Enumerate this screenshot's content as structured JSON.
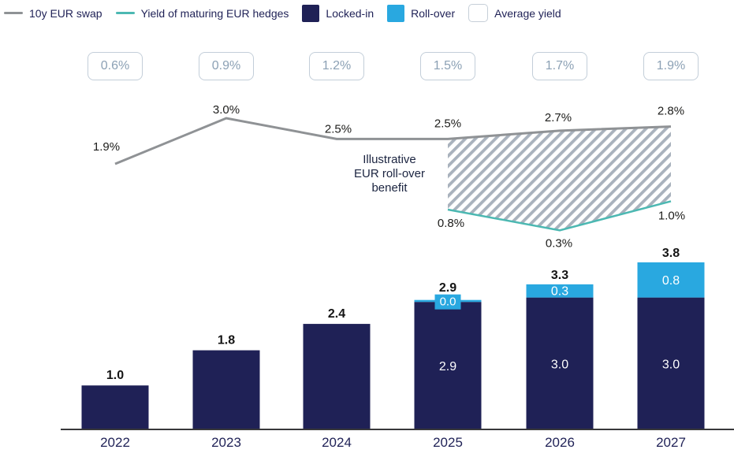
{
  "colors": {
    "navy": "#1f2156",
    "blue": "#29a8e0",
    "teal": "#4cb8b2",
    "swap_line": "#8f9295",
    "hatch": "#a9b2bd",
    "label": "#1d1d1b",
    "axis": "#38383a",
    "avg_box_border": "#c3ced9",
    "avg_box_text": "#8ca1b5",
    "white": "#ffffff"
  },
  "legend": {
    "items": [
      {
        "swatch": "line",
        "color": "swap_line",
        "label": "10y EUR swap"
      },
      {
        "swatch": "line",
        "color": "teal",
        "label": "Yield of maturing EUR hedges"
      },
      {
        "swatch": "square",
        "color": "navy",
        "label": "Locked-in"
      },
      {
        "swatch": "square",
        "color": "blue",
        "label": "Roll-over"
      },
      {
        "swatch": "square_outline",
        "color": "white",
        "label": "Average yield"
      }
    ]
  },
  "chart_data": {
    "type": "combo",
    "categories": [
      "2022",
      "2023",
      "2024",
      "2025",
      "2026",
      "2027"
    ],
    "series": [
      {
        "name": "Locked-in",
        "type": "bar",
        "stack": "volume",
        "color": "navy",
        "values": [
          1.0,
          1.8,
          2.4,
          2.9,
          3.0,
          3.0
        ],
        "inside_labels": [
          null,
          null,
          null,
          "2.9",
          "3.0",
          "3.0"
        ]
      },
      {
        "name": "Roll-over",
        "type": "bar",
        "stack": "volume",
        "color": "blue",
        "values": [
          null,
          null,
          null,
          0.0,
          0.3,
          0.8
        ],
        "inside_labels": [
          null,
          null,
          null,
          "0.0",
          "0.3",
          "0.8"
        ]
      },
      {
        "name": "10y EUR swap",
        "type": "line",
        "unit": "%",
        "color": "swap_line",
        "values": [
          1.9,
          3.0,
          2.5,
          2.5,
          2.7,
          2.8
        ],
        "labels": [
          "1.9%",
          "3.0%",
          "2.5%",
          "2.5%",
          "2.7%",
          "2.8%"
        ]
      },
      {
        "name": "Yield of maturing EUR hedges",
        "type": "line",
        "unit": "%",
        "color": "teal",
        "values": [
          null,
          null,
          null,
          0.8,
          0.3,
          1.0
        ],
        "labels": [
          null,
          null,
          null,
          "0.8%",
          "0.3%",
          "1.0%"
        ]
      },
      {
        "name": "Average yield",
        "type": "boxed_labels",
        "values": [
          "0.6%",
          "0.9%",
          "1.2%",
          "1.5%",
          "1.7%",
          "1.9%"
        ]
      }
    ],
    "bar_totals": [
      "1.0",
      "1.8",
      "2.4",
      "2.9",
      "3.3",
      "3.8"
    ],
    "annotation": {
      "lines": [
        "Illustrative",
        "EUR roll-over",
        "benefit"
      ]
    },
    "hatch_between": {
      "upper": "10y EUR swap",
      "lower": "Yield of maturing EUR hedges",
      "category_range": [
        "2025",
        "2027"
      ],
      "meaning": "Illustrative EUR roll-over benefit"
    },
    "grid": false,
    "legend_position": "top-left"
  }
}
